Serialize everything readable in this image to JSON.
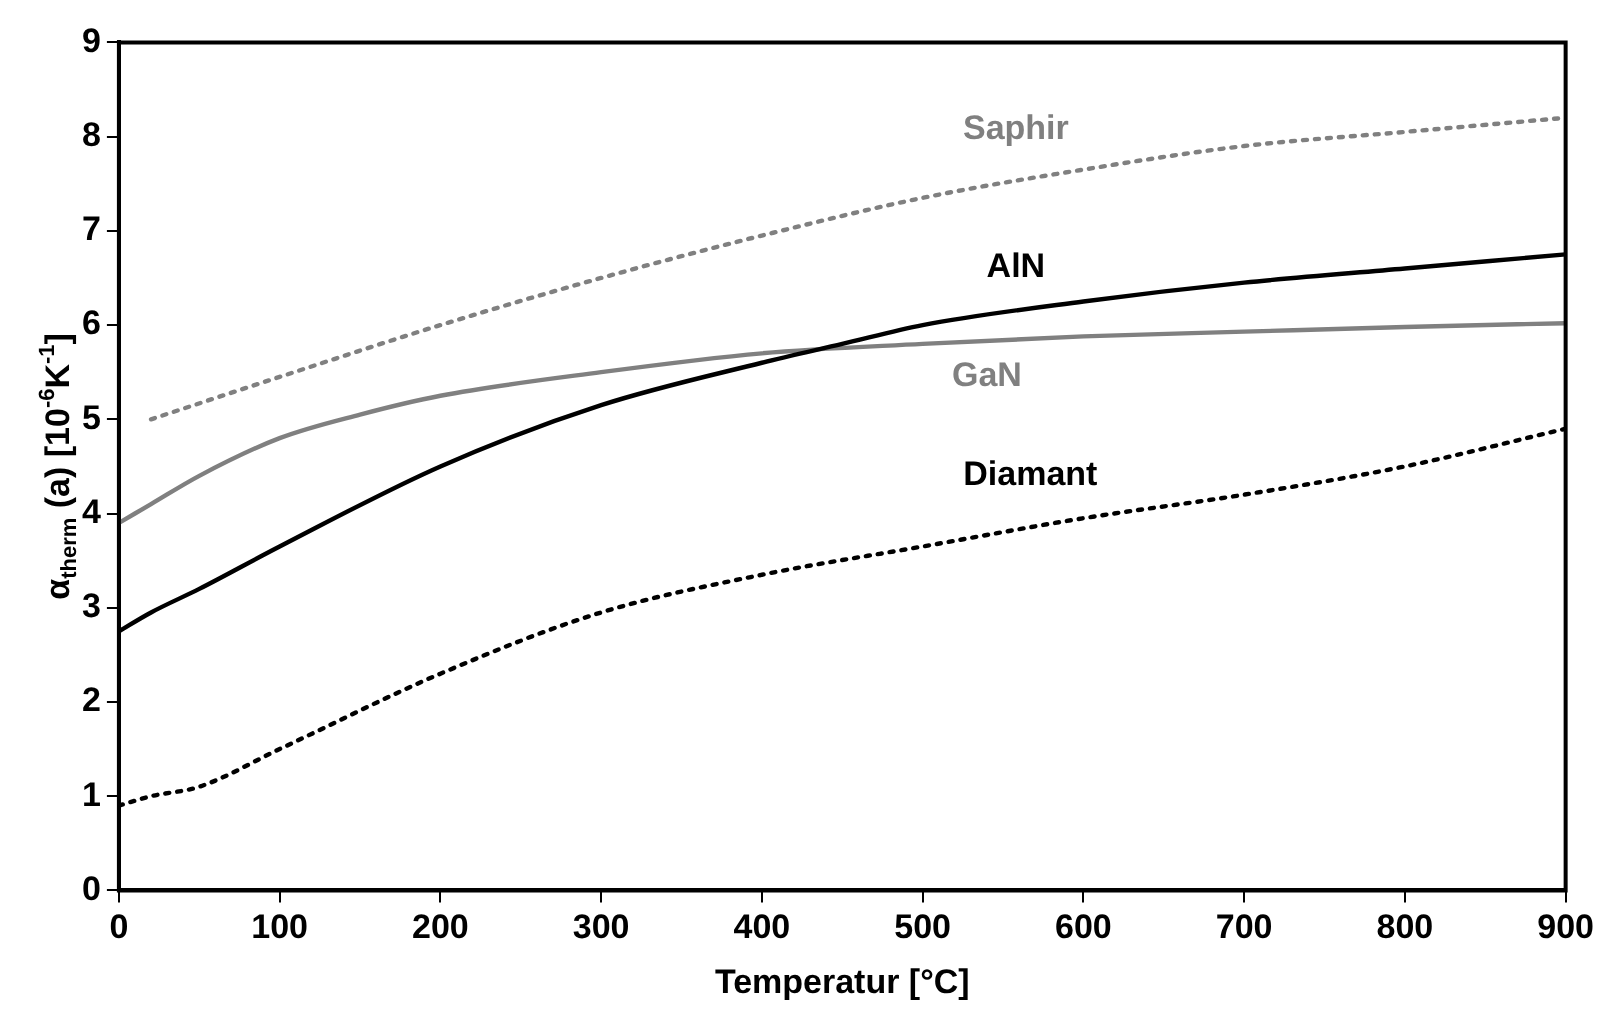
{
  "chart_data": {
    "type": "line",
    "xlabel": "Temperatur [°C]",
    "ylabel": "α$_{therm}$ (a) [10$^{-6}$K$^{-1}$]",
    "xlim": [
      0,
      900
    ],
    "xticks": [
      0,
      100,
      200,
      300,
      400,
      500,
      600,
      700,
      800,
      900
    ],
    "ylim": [
      0,
      9
    ],
    "yticks": [
      0,
      1,
      2,
      3,
      4,
      5,
      6,
      7,
      8,
      9
    ],
    "grid": false,
    "legend": false,
    "marker": "none",
    "series": [
      {
        "name": "Saphir",
        "color": "#808080",
        "line_style": "dotted",
        "x": [
          20,
          100,
          200,
          300,
          400,
          500,
          600,
          700,
          800,
          900
        ],
        "values": [
          5.0,
          5.45,
          6.0,
          6.5,
          6.95,
          7.35,
          7.65,
          7.9,
          8.05,
          8.2
        ]
      },
      {
        "name": "AlN",
        "color": "#000000",
        "line_style": "solid",
        "x": [
          0,
          20,
          50,
          100,
          200,
          300,
          400,
          450,
          500,
          600,
          700,
          800,
          900
        ],
        "values": [
          2.75,
          2.95,
          3.2,
          3.65,
          4.5,
          5.15,
          5.6,
          5.8,
          6.0,
          6.25,
          6.45,
          6.6,
          6.75
        ]
      },
      {
        "name": "GaN",
        "color": "#808080",
        "line_style": "solid",
        "x": [
          0,
          20,
          50,
          100,
          150,
          200,
          300,
          400,
          500,
          600,
          700,
          800,
          900
        ],
        "values": [
          3.9,
          4.1,
          4.4,
          4.8,
          5.05,
          5.25,
          5.5,
          5.7,
          5.8,
          5.88,
          5.93,
          5.98,
          6.02
        ]
      },
      {
        "name": "Diamant",
        "color": "#000000",
        "line_style": "dotted",
        "x": [
          0,
          20,
          50,
          100,
          200,
          300,
          400,
          500,
          600,
          700,
          800,
          900
        ],
        "values": [
          0.9,
          1.0,
          1.1,
          1.5,
          2.3,
          2.95,
          3.35,
          3.65,
          3.95,
          4.2,
          4.5,
          4.9
        ]
      }
    ]
  }
}
